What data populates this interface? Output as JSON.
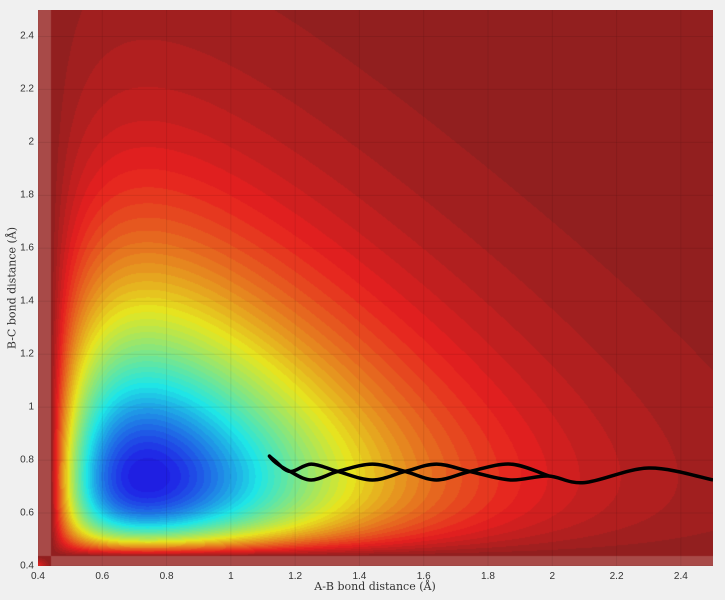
{
  "chart_data": {
    "type": "contour",
    "title": "",
    "xlabel": "A-B bond distance (Å)",
    "ylabel": "B-C bond distance (Å)",
    "xlim": [
      0.4,
      2.5
    ],
    "ylim": [
      0.4,
      2.5
    ],
    "xticks": [
      "0.4",
      "0.6",
      "0.8",
      "1",
      "1.2",
      "1.4",
      "1.6",
      "1.8",
      "2",
      "2.2",
      "2.4"
    ],
    "yticks": [
      "0.4",
      "0.6",
      "0.8",
      "1",
      "1.2",
      "1.4",
      "1.6",
      "1.8",
      "2",
      "2.2",
      "2.4"
    ],
    "colormap": "jet",
    "grid": true,
    "trajectory_color": "#000000",
    "trajectory": [
      [
        1.99,
        0.74
      ],
      [
        1.87,
        0.785
      ],
      [
        1.744,
        0.757
      ],
      [
        1.64,
        0.725
      ],
      [
        1.542,
        0.757
      ],
      [
        1.44,
        0.785
      ],
      [
        1.333,
        0.757
      ],
      [
        1.25,
        0.725
      ],
      [
        1.184,
        0.757
      ],
      [
        1.14,
        0.79
      ],
      [
        1.12,
        0.815
      ],
      [
        1.135,
        0.8
      ],
      [
        1.184,
        0.757
      ],
      [
        1.25,
        0.785
      ],
      [
        1.333,
        0.757
      ],
      [
        1.44,
        0.725
      ],
      [
        1.542,
        0.757
      ],
      [
        1.64,
        0.785
      ],
      [
        1.744,
        0.757
      ],
      [
        1.87,
        0.725
      ],
      [
        1.987,
        0.74
      ],
      [
        2.1,
        0.715
      ],
      [
        2.3,
        0.77
      ],
      [
        2.5,
        0.725
      ]
    ]
  }
}
